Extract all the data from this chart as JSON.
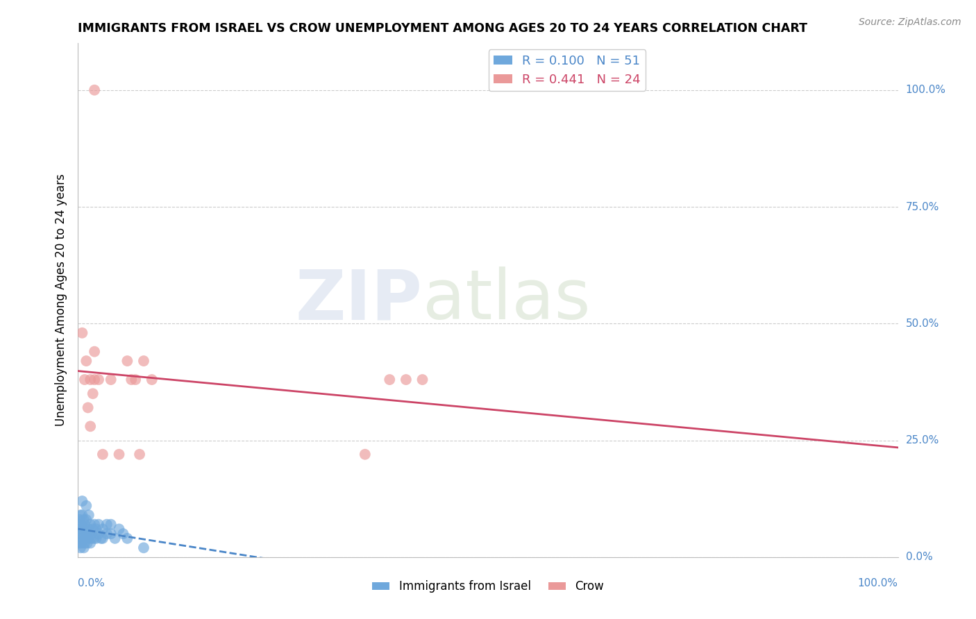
{
  "title": "IMMIGRANTS FROM ISRAEL VS CROW UNEMPLOYMENT AMONG AGES 20 TO 24 YEARS CORRELATION CHART",
  "source": "Source: ZipAtlas.com",
  "ylabel": "Unemployment Among Ages 20 to 24 years",
  "legend_label1": "Immigrants from Israel",
  "legend_label2": "Crow",
  "R1": 0.1,
  "N1": 51,
  "R2": 0.441,
  "N2": 24,
  "blue_color": "#6fa8dc",
  "pink_color": "#ea9999",
  "blue_line_color": "#4a86c8",
  "pink_line_color": "#cc4466",
  "blue_scatter_x": [
    0.0,
    0.001,
    0.001,
    0.002,
    0.002,
    0.003,
    0.003,
    0.003,
    0.004,
    0.004,
    0.005,
    0.005,
    0.005,
    0.006,
    0.006,
    0.007,
    0.007,
    0.008,
    0.008,
    0.009,
    0.009,
    0.01,
    0.01,
    0.01,
    0.011,
    0.012,
    0.013,
    0.013,
    0.015,
    0.015,
    0.016,
    0.017,
    0.018,
    0.019,
    0.02,
    0.022,
    0.022,
    0.025,
    0.025,
    0.028,
    0.03,
    0.03,
    0.035,
    0.035,
    0.04,
    0.04,
    0.045,
    0.05,
    0.055,
    0.06,
    0.08
  ],
  "blue_scatter_y": [
    0.05,
    0.03,
    0.07,
    0.04,
    0.08,
    0.02,
    0.06,
    0.09,
    0.03,
    0.07,
    0.05,
    0.09,
    0.12,
    0.04,
    0.06,
    0.02,
    0.08,
    0.03,
    0.07,
    0.04,
    0.06,
    0.05,
    0.08,
    0.11,
    0.03,
    0.04,
    0.06,
    0.09,
    0.03,
    0.07,
    0.04,
    0.05,
    0.06,
    0.04,
    0.07,
    0.04,
    0.06,
    0.05,
    0.07,
    0.04,
    0.04,
    0.06,
    0.05,
    0.07,
    0.05,
    0.07,
    0.04,
    0.06,
    0.05,
    0.04,
    0.02
  ],
  "pink_scatter_x": [
    0.005,
    0.008,
    0.01,
    0.012,
    0.015,
    0.015,
    0.018,
    0.02,
    0.02,
    0.025,
    0.03,
    0.04,
    0.05,
    0.06,
    0.065,
    0.07,
    0.075,
    0.08,
    0.09,
    0.35,
    0.38,
    0.4,
    0.42,
    0.02
  ],
  "pink_scatter_y": [
    0.48,
    0.38,
    0.42,
    0.32,
    0.38,
    0.28,
    0.35,
    0.38,
    0.44,
    0.38,
    0.22,
    0.38,
    0.22,
    0.42,
    0.38,
    0.38,
    0.22,
    0.42,
    0.38,
    0.22,
    0.38,
    0.38,
    0.38,
    1.0
  ]
}
